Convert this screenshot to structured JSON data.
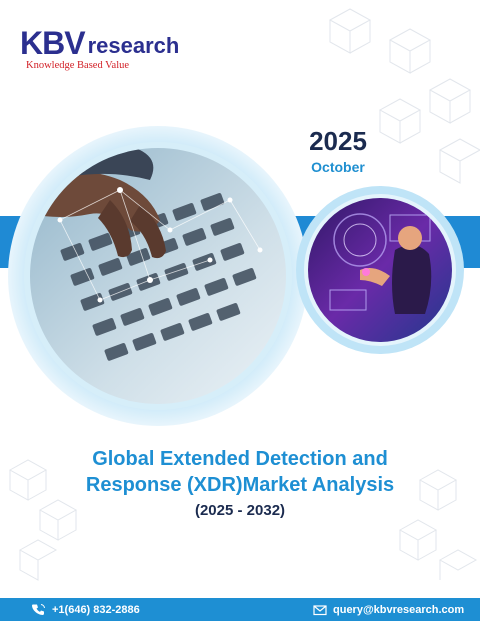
{
  "logo": {
    "mark": "KBV",
    "word": "research",
    "tagline": "Knowledge Based Value"
  },
  "report": {
    "year": "2025",
    "month": "October"
  },
  "title": {
    "line1": "Global Extended Detection and",
    "line2": "Response (XDR)Market Analysis",
    "line3": "(2025 - 2032)"
  },
  "contact": {
    "phone": "+1(646) 832-2886",
    "email": "query@kbvresearch.com"
  },
  "colors": {
    "brand_navy": "#2b2f8f",
    "accent_blue": "#1e8fd3",
    "band_blue": "#1f8ad4",
    "tag_red": "#d21f26"
  },
  "icons": [
    "phone-icon",
    "email-icon"
  ]
}
